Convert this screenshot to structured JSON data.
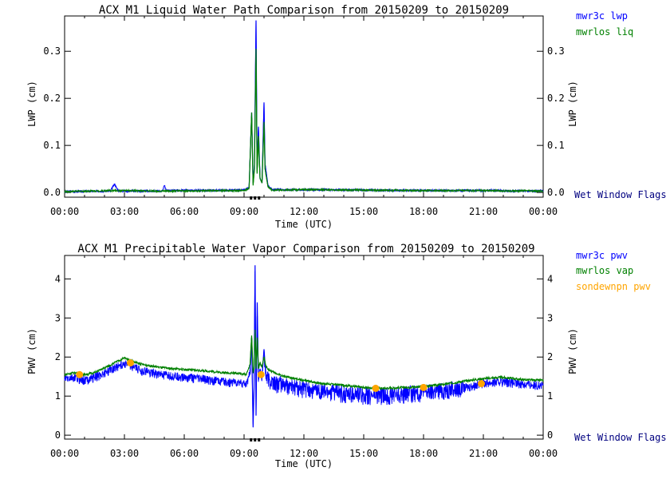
{
  "colors": {
    "mwr3c": "#0000ff",
    "mwrlos": "#008000",
    "sonde": "#ffa500",
    "flags": "#000080",
    "axis": "#000000"
  },
  "chart_data": [
    {
      "type": "line",
      "title": "ACX M1 Liquid Water Path Comparison from 20150209 to 20150209",
      "xlabel": "Time (UTC)",
      "ylabel": "LWP (cm)",
      "ylabel_right": "LWP (cm)",
      "xlim": [
        0,
        24
      ],
      "ylim": [
        -0.01,
        0.375
      ],
      "x_ticks": [
        "00:00",
        "03:00",
        "06:00",
        "09:00",
        "12:00",
        "15:00",
        "18:00",
        "21:00",
        "00:00"
      ],
      "y_ticks": [
        "0.0",
        "0.1",
        "0.2",
        "0.3"
      ],
      "flag_label": "Wet Window Flags",
      "wet_window_flags": [
        9.35,
        9.55,
        9.75
      ],
      "grid": false,
      "legend_position": "right",
      "series": [
        {
          "name": "mwr3c lwp",
          "color": "#0000ff",
          "baseline": 0.004,
          "x": [
            0,
            2.3,
            2.5,
            2.7,
            4.9,
            5.0,
            5.1,
            9.0,
            9.25,
            9.38,
            9.45,
            9.52,
            9.6,
            9.65,
            9.72,
            9.8,
            9.9,
            10.0,
            10.05,
            10.2,
            10.4,
            12,
            15,
            18,
            21,
            24
          ],
          "y": [
            0.002,
            0.003,
            0.018,
            0.003,
            0.003,
            0.016,
            0.004,
            0.005,
            0.01,
            0.17,
            0.02,
            0.06,
            0.365,
            0.05,
            0.14,
            0.03,
            0.02,
            0.19,
            0.06,
            0.015,
            0.006,
            0.006,
            0.005,
            0.004,
            0.004,
            0.003
          ]
        },
        {
          "name": "mwrlos liq",
          "color": "#008000",
          "baseline": 0.003,
          "x": [
            0,
            2.5,
            5,
            9.0,
            9.25,
            9.38,
            9.45,
            9.52,
            9.6,
            9.65,
            9.72,
            9.8,
            9.9,
            10.0,
            10.05,
            10.2,
            10.4,
            12,
            15,
            18,
            21,
            24
          ],
          "y": [
            0.002,
            0.004,
            0.003,
            0.004,
            0.008,
            0.17,
            0.015,
            0.05,
            0.305,
            0.04,
            0.12,
            0.03,
            0.02,
            0.15,
            0.05,
            0.012,
            0.005,
            0.006,
            0.005,
            0.004,
            0.004,
            0.003
          ]
        }
      ]
    },
    {
      "type": "line",
      "title": "ACX M1 Precipitable Water Vapor Comparison from 20150209 to 20150209",
      "xlabel": "Time (UTC)",
      "ylabel": "PWV (cm)",
      "ylabel_right": "PWV (cm)",
      "xlim": [
        0,
        24
      ],
      "ylim": [
        -0.1,
        4.6
      ],
      "x_ticks": [
        "00:00",
        "03:00",
        "06:00",
        "09:00",
        "12:00",
        "15:00",
        "18:00",
        "21:00",
        "00:00"
      ],
      "y_ticks": [
        "0",
        "1",
        "2",
        "3",
        "4"
      ],
      "flag_label": "Wet Window Flags",
      "wet_window_flags": [
        9.35,
        9.55,
        9.75
      ],
      "grid": false,
      "legend_position": "right",
      "series": [
        {
          "name": "mwr3c pwv",
          "color": "#0000ff",
          "x": [
            0,
            0.5,
            1,
            1.5,
            2,
            2.5,
            3,
            3.3,
            3.6,
            4,
            5,
            6,
            7,
            8,
            8.8,
            9.1,
            9.3,
            9.38,
            9.45,
            9.5,
            9.55,
            9.6,
            9.66,
            9.72,
            9.8,
            9.9,
            10.0,
            10.1,
            10.3,
            11,
            12,
            13,
            14,
            15,
            16,
            17,
            18,
            19,
            20,
            21,
            22,
            23,
            24
          ],
          "y": [
            1.45,
            1.48,
            1.42,
            1.5,
            1.6,
            1.75,
            1.85,
            1.8,
            1.72,
            1.65,
            1.55,
            1.5,
            1.45,
            1.38,
            1.35,
            1.3,
            1.6,
            2.5,
            0.2,
            1.2,
            4.35,
            0.5,
            3.4,
            1.4,
            1.7,
            1.5,
            2.2,
            1.5,
            1.4,
            1.3,
            1.22,
            1.15,
            1.1,
            1.05,
            1.05,
            1.08,
            1.12,
            1.18,
            1.22,
            1.35,
            1.38,
            1.32,
            1.28
          ]
        },
        {
          "name": "mwrlos vap",
          "color": "#008000",
          "x": [
            0,
            0.5,
            1,
            1.5,
            2,
            2.5,
            3,
            3.3,
            3.6,
            4,
            5,
            6,
            7,
            8,
            8.8,
            9.1,
            9.3,
            9.38,
            9.45,
            9.5,
            9.55,
            9.6,
            9.66,
            9.72,
            9.8,
            9.9,
            10.0,
            10.1,
            10.3,
            11,
            12,
            13,
            14,
            15,
            16,
            17,
            18,
            19,
            20,
            21,
            22,
            23,
            24
          ],
          "y": [
            1.55,
            1.6,
            1.55,
            1.6,
            1.72,
            1.85,
            1.98,
            1.92,
            1.85,
            1.8,
            1.72,
            1.68,
            1.65,
            1.6,
            1.58,
            1.55,
            1.8,
            2.55,
            1.6,
            1.7,
            2.7,
            1.7,
            2.5,
            1.7,
            1.85,
            1.75,
            2.0,
            1.75,
            1.65,
            1.5,
            1.4,
            1.32,
            1.28,
            1.22,
            1.2,
            1.22,
            1.25,
            1.3,
            1.38,
            1.45,
            1.48,
            1.42,
            1.4
          ]
        },
        {
          "name": "sondewnpn pwv",
          "color": "#ffa500",
          "style": "points",
          "x": [
            0.75,
            3.3,
            9.85,
            15.6,
            18.0,
            20.9
          ],
          "y": [
            1.55,
            1.85,
            1.55,
            1.2,
            1.22,
            1.32
          ]
        }
      ]
    }
  ]
}
